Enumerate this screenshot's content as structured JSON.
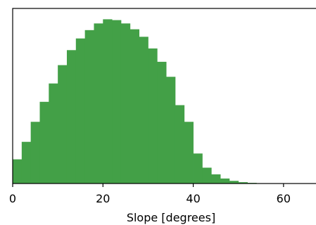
{
  "chart_data": {
    "type": "bar",
    "title": "",
    "xlabel": "Slope [degrees]",
    "ylabel": "",
    "xlim": [
      0,
      70
    ],
    "ylim": [
      0,
      1.05
    ],
    "x_ticks": [
      0,
      20,
      40,
      60
    ],
    "y_ticks": [],
    "grid": false,
    "bar_color": "#43a047",
    "bin_width": 2,
    "bin_starts": [
      0,
      2,
      4,
      6,
      8,
      10,
      12,
      14,
      16,
      18,
      20,
      22,
      24,
      26,
      28,
      30,
      32,
      34,
      36,
      38,
      40,
      42,
      44,
      46,
      48,
      50,
      52,
      54,
      56,
      58,
      60,
      62,
      64,
      66,
      68
    ],
    "values": [
      0.145,
      0.25,
      0.37,
      0.49,
      0.6,
      0.71,
      0.8,
      0.87,
      0.92,
      0.96,
      0.985,
      0.98,
      0.96,
      0.925,
      0.88,
      0.81,
      0.73,
      0.64,
      0.47,
      0.37,
      0.18,
      0.095,
      0.055,
      0.03,
      0.016,
      0.008,
      0.004,
      0.002,
      0.001,
      0.0005,
      0.0003,
      0.0002,
      0.0001,
      0.0001,
      0.0001
    ]
  }
}
